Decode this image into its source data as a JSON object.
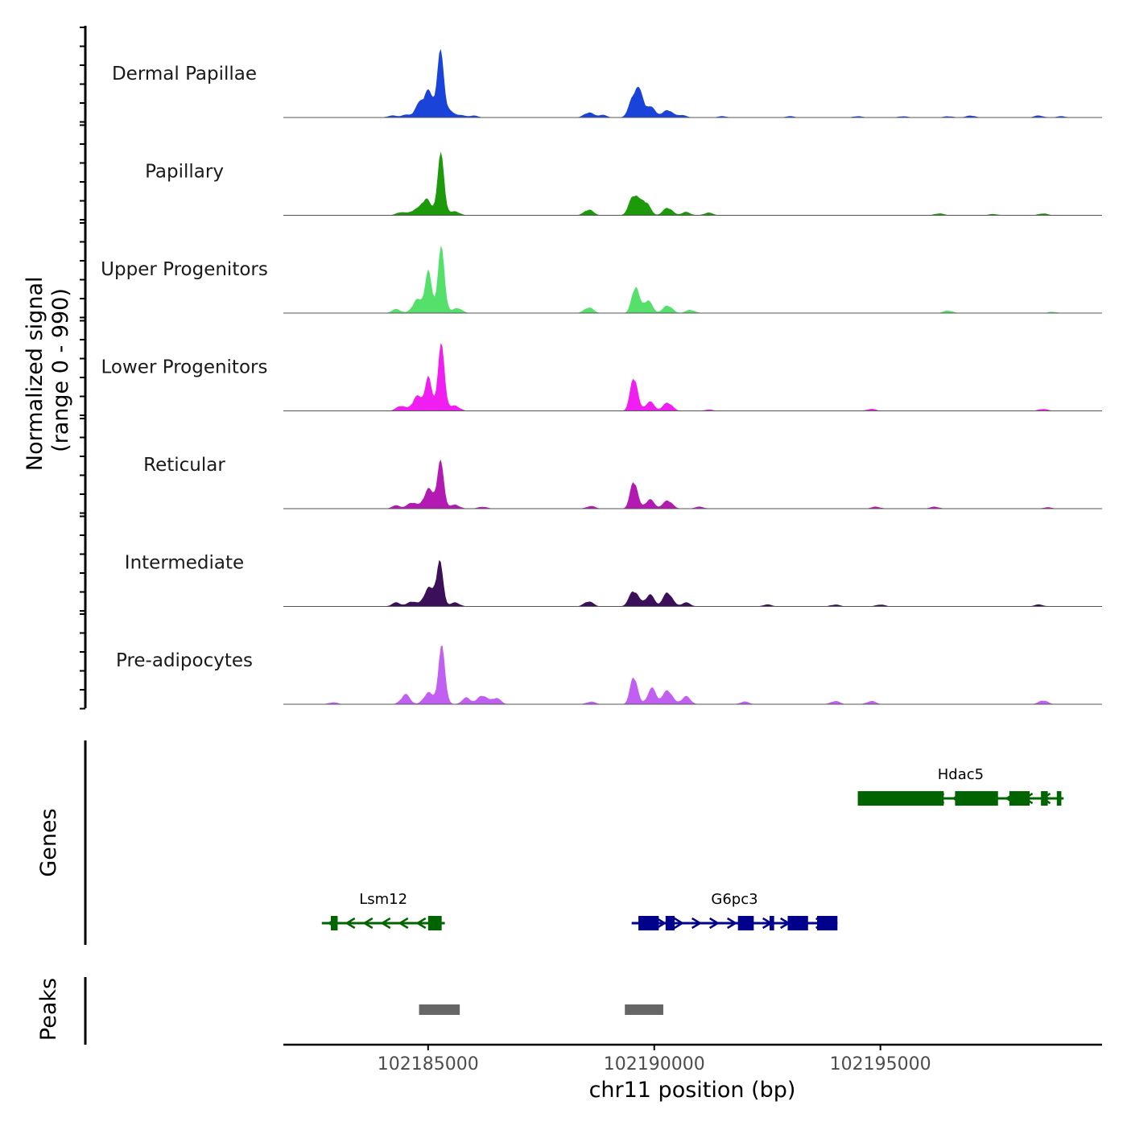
{
  "chart_data": {
    "type": "area",
    "title": "",
    "xlabel": "chr11 position (bp)",
    "ylabel": "Normalized signal\n(range 0 - 990)",
    "ylabel_lines": [
      "Normalized signal",
      "(range 0 - 990)"
    ],
    "xlim": [
      102181800,
      102199900
    ],
    "ylim": [
      0,
      990
    ],
    "x_ticks": [
      102185000,
      102190000,
      102195000
    ],
    "x_tick_labels": [
      "102185000",
      "102190000",
      "102195000"
    ],
    "tracks": [
      {
        "name": "Dermal Papillae",
        "color": "#1a43d9",
        "peaks": [
          [
            102184200,
            3
          ],
          [
            102184500,
            4
          ],
          [
            102184800,
            18
          ],
          [
            102185000,
            38
          ],
          [
            102185270,
            95
          ],
          [
            102185450,
            10
          ],
          [
            102185700,
            4
          ],
          [
            102186000,
            3
          ],
          [
            102188550,
            8
          ],
          [
            102188850,
            4
          ],
          [
            102189550,
            32
          ],
          [
            102189700,
            28
          ],
          [
            102189950,
            14
          ],
          [
            102190300,
            12
          ],
          [
            102190600,
            4
          ],
          [
            102191500,
            2
          ],
          [
            102193000,
            2
          ],
          [
            102194500,
            2
          ],
          [
            102195500,
            2
          ],
          [
            102196500,
            2
          ],
          [
            102197000,
            3
          ],
          [
            102198500,
            3
          ],
          [
            102199000,
            2
          ]
        ]
      },
      {
        "name": "Papillary",
        "color": "#1c9a0a",
        "peaks": [
          [
            102184400,
            5
          ],
          [
            102184700,
            8
          ],
          [
            102184950,
            26
          ],
          [
            102185280,
            90
          ],
          [
            102185600,
            6
          ],
          [
            102188550,
            9
          ],
          [
            102189550,
            32
          ],
          [
            102189800,
            22
          ],
          [
            102190300,
            12
          ],
          [
            102190700,
            5
          ],
          [
            102191200,
            4
          ],
          [
            102196300,
            3
          ],
          [
            102197500,
            2
          ],
          [
            102198600,
            3
          ]
        ]
      },
      {
        "name": "Upper Progenitors",
        "color": "#55e06c",
        "peaks": [
          [
            102184300,
            6
          ],
          [
            102184750,
            20
          ],
          [
            102185000,
            62
          ],
          [
            102185290,
            96
          ],
          [
            102185650,
            8
          ],
          [
            102188550,
            9
          ],
          [
            102189580,
            42
          ],
          [
            102189850,
            20
          ],
          [
            102190300,
            12
          ],
          [
            102190800,
            5
          ],
          [
            102196500,
            4
          ],
          [
            102198800,
            2
          ]
        ]
      },
      {
        "name": "Lower Progenitors",
        "color": "#f01ef0",
        "peaks": [
          [
            102184400,
            8
          ],
          [
            102184750,
            22
          ],
          [
            102185000,
            50
          ],
          [
            102185290,
            97
          ],
          [
            102185600,
            8
          ],
          [
            102189550,
            55
          ],
          [
            102189900,
            14
          ],
          [
            102190300,
            13
          ],
          [
            102191200,
            2
          ],
          [
            102194800,
            3
          ],
          [
            102198600,
            3
          ]
        ]
      },
      {
        "name": "Reticular",
        "color": "#b21ab2",
        "peaks": [
          [
            102184300,
            5
          ],
          [
            102184650,
            10
          ],
          [
            102185000,
            30
          ],
          [
            102185270,
            70
          ],
          [
            102185600,
            6
          ],
          [
            102186200,
            3
          ],
          [
            102188600,
            4
          ],
          [
            102189550,
            45
          ],
          [
            102189900,
            14
          ],
          [
            102190300,
            13
          ],
          [
            102191000,
            3
          ],
          [
            102194900,
            3
          ],
          [
            102196200,
            3
          ],
          [
            102198700,
            2
          ]
        ]
      },
      {
        "name": "Intermediate",
        "color": "#3c0f5a",
        "peaks": [
          [
            102184300,
            6
          ],
          [
            102184650,
            8
          ],
          [
            102185000,
            28
          ],
          [
            102185250,
            68
          ],
          [
            102185600,
            6
          ],
          [
            102188550,
            8
          ],
          [
            102189550,
            25
          ],
          [
            102189900,
            18
          ],
          [
            102190300,
            22
          ],
          [
            102190700,
            6
          ],
          [
            102192500,
            3
          ],
          [
            102194000,
            3
          ],
          [
            102195000,
            3
          ],
          [
            102198500,
            3
          ]
        ]
      },
      {
        "name": "Pre-adipocytes",
        "color": "#c15ff2",
        "peaks": [
          [
            102182900,
            3
          ],
          [
            102184500,
            15
          ],
          [
            102185000,
            18
          ],
          [
            102185300,
            85
          ],
          [
            102185850,
            10
          ],
          [
            102186200,
            14
          ],
          [
            102186500,
            10
          ],
          [
            102188600,
            4
          ],
          [
            102189550,
            45
          ],
          [
            102189950,
            24
          ],
          [
            102190300,
            22
          ],
          [
            102190700,
            12
          ],
          [
            102192000,
            4
          ],
          [
            102194000,
            5
          ],
          [
            102194800,
            5
          ],
          [
            102198600,
            6
          ]
        ]
      }
    ],
    "genes_label": "Genes",
    "genes": [
      {
        "name": "Hdac5",
        "strand": "-",
        "color": "#006400",
        "row": 1,
        "start": 102194500,
        "end": 102199050,
        "blocks": [
          [
            102194500,
            102196400
          ],
          [
            102196650,
            102197600
          ],
          [
            102197850,
            102198300
          ],
          [
            102198550,
            102198700
          ],
          [
            102198900,
            102199000
          ]
        ]
      },
      {
        "name": "Lsm12",
        "strand": "-",
        "color": "#006400",
        "row": 2,
        "start": 102182650,
        "end": 102185370,
        "blocks": [
          [
            102182850,
            102183000
          ],
          [
            102185000,
            102185300
          ]
        ]
      },
      {
        "name": "G6pc3",
        "strand": "+",
        "color": "#00008b",
        "row": 2,
        "start": 102189500,
        "end": 102194050,
        "blocks": [
          [
            102189650,
            102190100
          ],
          [
            102190250,
            102190450
          ],
          [
            102191850,
            102192200
          ],
          [
            102192550,
            102192650
          ],
          [
            102192950,
            102193400
          ],
          [
            102193600,
            102194050
          ]
        ]
      }
    ],
    "peaks_label": "Peaks",
    "peak_regions": [
      [
        102184800,
        102185700
      ],
      [
        102189350,
        102190200
      ]
    ]
  }
}
